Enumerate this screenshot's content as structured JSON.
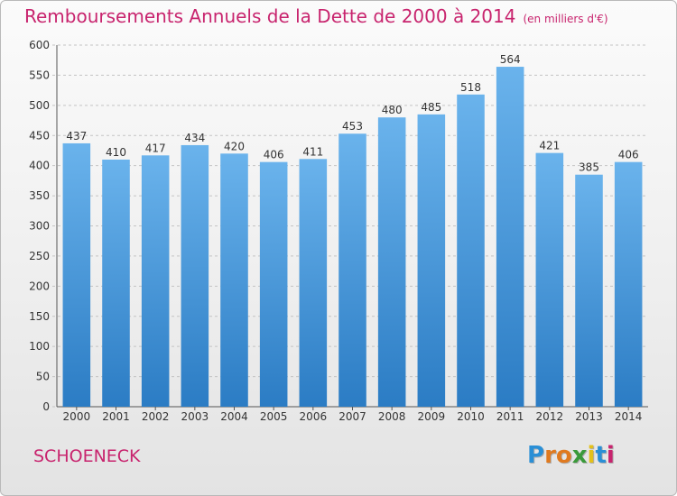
{
  "title": "Remboursements Annuels de la Dette de 2000 à 2014",
  "unit_note": "(en milliers d'€)",
  "commune": "SCHOENECK",
  "logo": {
    "text": "Proxiti",
    "letter_colors": [
      "#2a8fd6",
      "#e07a1f",
      "#e07a1f",
      "#3a9a3a",
      "#e4c11a",
      "#2a8fd6",
      "#c8246e"
    ]
  },
  "colors": {
    "bar_top": "#6ab3ec",
    "bar_bottom": "#2b7cc4",
    "title": "#c8246e",
    "axis_text": "#333333",
    "grid": "#c4c4c4"
  },
  "chart_data": {
    "type": "bar",
    "categories": [
      "2000",
      "2001",
      "2002",
      "2003",
      "2004",
      "2005",
      "2006",
      "2007",
      "2008",
      "2009",
      "2010",
      "2011",
      "2012",
      "2013",
      "2014"
    ],
    "values": [
      437,
      410,
      417,
      434,
      420,
      406,
      411,
      453,
      480,
      485,
      518,
      564,
      421,
      385,
      406
    ],
    "y_ticks": [
      "0",
      "50",
      "100",
      "150",
      "200",
      "250",
      "300",
      "350",
      "400",
      "450",
      "500",
      "550",
      "600"
    ],
    "ylim": [
      0,
      600
    ],
    "grid": true,
    "data_labels": true
  }
}
